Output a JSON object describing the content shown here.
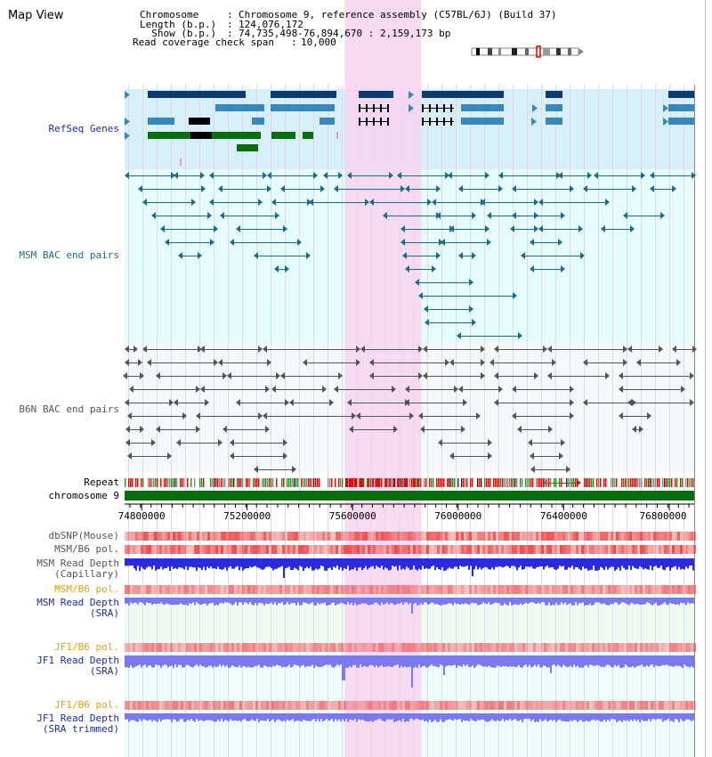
{
  "title": "Map View",
  "header": {
    "rows": [
      {
        "key": "Chromosome     ",
        "value": "Chromosome 9, reference assembly (C57BL/6J) (Build 37)"
      },
      {
        "key": "Length (b.p.) ",
        "value": "124,076,172"
      },
      {
        "key": "  Show (b.p.) ",
        "value": "74,735,498-76,894,670 : 2,159,173 bp"
      },
      {
        "key": "Read coverage check span ",
        "value": "10,000"
      }
    ]
  },
  "colors": {
    "refseq_bg": "#d6effa",
    "msm_bg": "#e6fbfb",
    "b6n_bg": "#f4f8fb",
    "highlight": "#f7d3f0",
    "refseq_dark": "#0e3a6e",
    "refseq_mid": "#3a88b8",
    "refseq_green": "#0a6e10",
    "msm_line": "#1d6b8c",
    "b6n_line": "#555555",
    "chrom_bar": "#0a6e10",
    "snp": "#f08080",
    "depth_blue": "#2b2bdc",
    "depth_light": "#7a7aee"
  },
  "tracks": [
    {
      "name": "refseq",
      "label": "RefSeq Genes",
      "color": "#1a2ea6"
    },
    {
      "name": "msm-bac",
      "label": "MSM BAC end pairs",
      "color": "#1d6b8c"
    },
    {
      "name": "b6n-bac",
      "label": "B6N BAC end pairs",
      "color": "#555555"
    },
    {
      "name": "repeat",
      "label": "Repeat",
      "color": "#000000"
    },
    {
      "name": "chromosome",
      "label": "chromosome 9",
      "color": "#000000"
    },
    {
      "name": "dbsnp",
      "label": "dbSNP(Mouse)",
      "color": "#555555"
    },
    {
      "name": "msm-b6-pol-1",
      "label": "MSM/B6 pol.",
      "color": "#555555"
    },
    {
      "name": "msm-depth-cap",
      "label": "MSM Read Depth\n(Capillary)",
      "color": "#555555"
    },
    {
      "name": "msm-b6-pol-2",
      "label": "MSM/B6 pol.",
      "color": "#e8a000"
    },
    {
      "name": "msm-depth-sra",
      "label": "MSM Read Depth\n(SRA)",
      "color": "#1a2ea6"
    },
    {
      "name": "jf1-b6-pol-1",
      "label": "JF1/B6 pol.",
      "color": "#e8a000"
    },
    {
      "name": "jf1-depth-sra",
      "label": "JF1 Read Depth\n(SRA)",
      "color": "#1a2ea6"
    },
    {
      "name": "jf1-b6-pol-2",
      "label": "JF1/B6 pol.",
      "color": "#e8a000"
    },
    {
      "name": "jf1-depth-trim",
      "label": "JF1 Read Depth\n(SRA trimmed)",
      "color": "#1a2ea6"
    }
  ],
  "axis": {
    "ticks": [
      "74800000",
      "75200000",
      "75600000",
      "76000000",
      "76400000",
      "76800000"
    ],
    "tick_values": [
      74800000,
      75200000,
      75600000,
      76000000,
      76400000,
      76800000
    ],
    "range": [
      74735498,
      76894670
    ],
    "highlight_range": [
      75570000,
      75860000
    ]
  }
}
